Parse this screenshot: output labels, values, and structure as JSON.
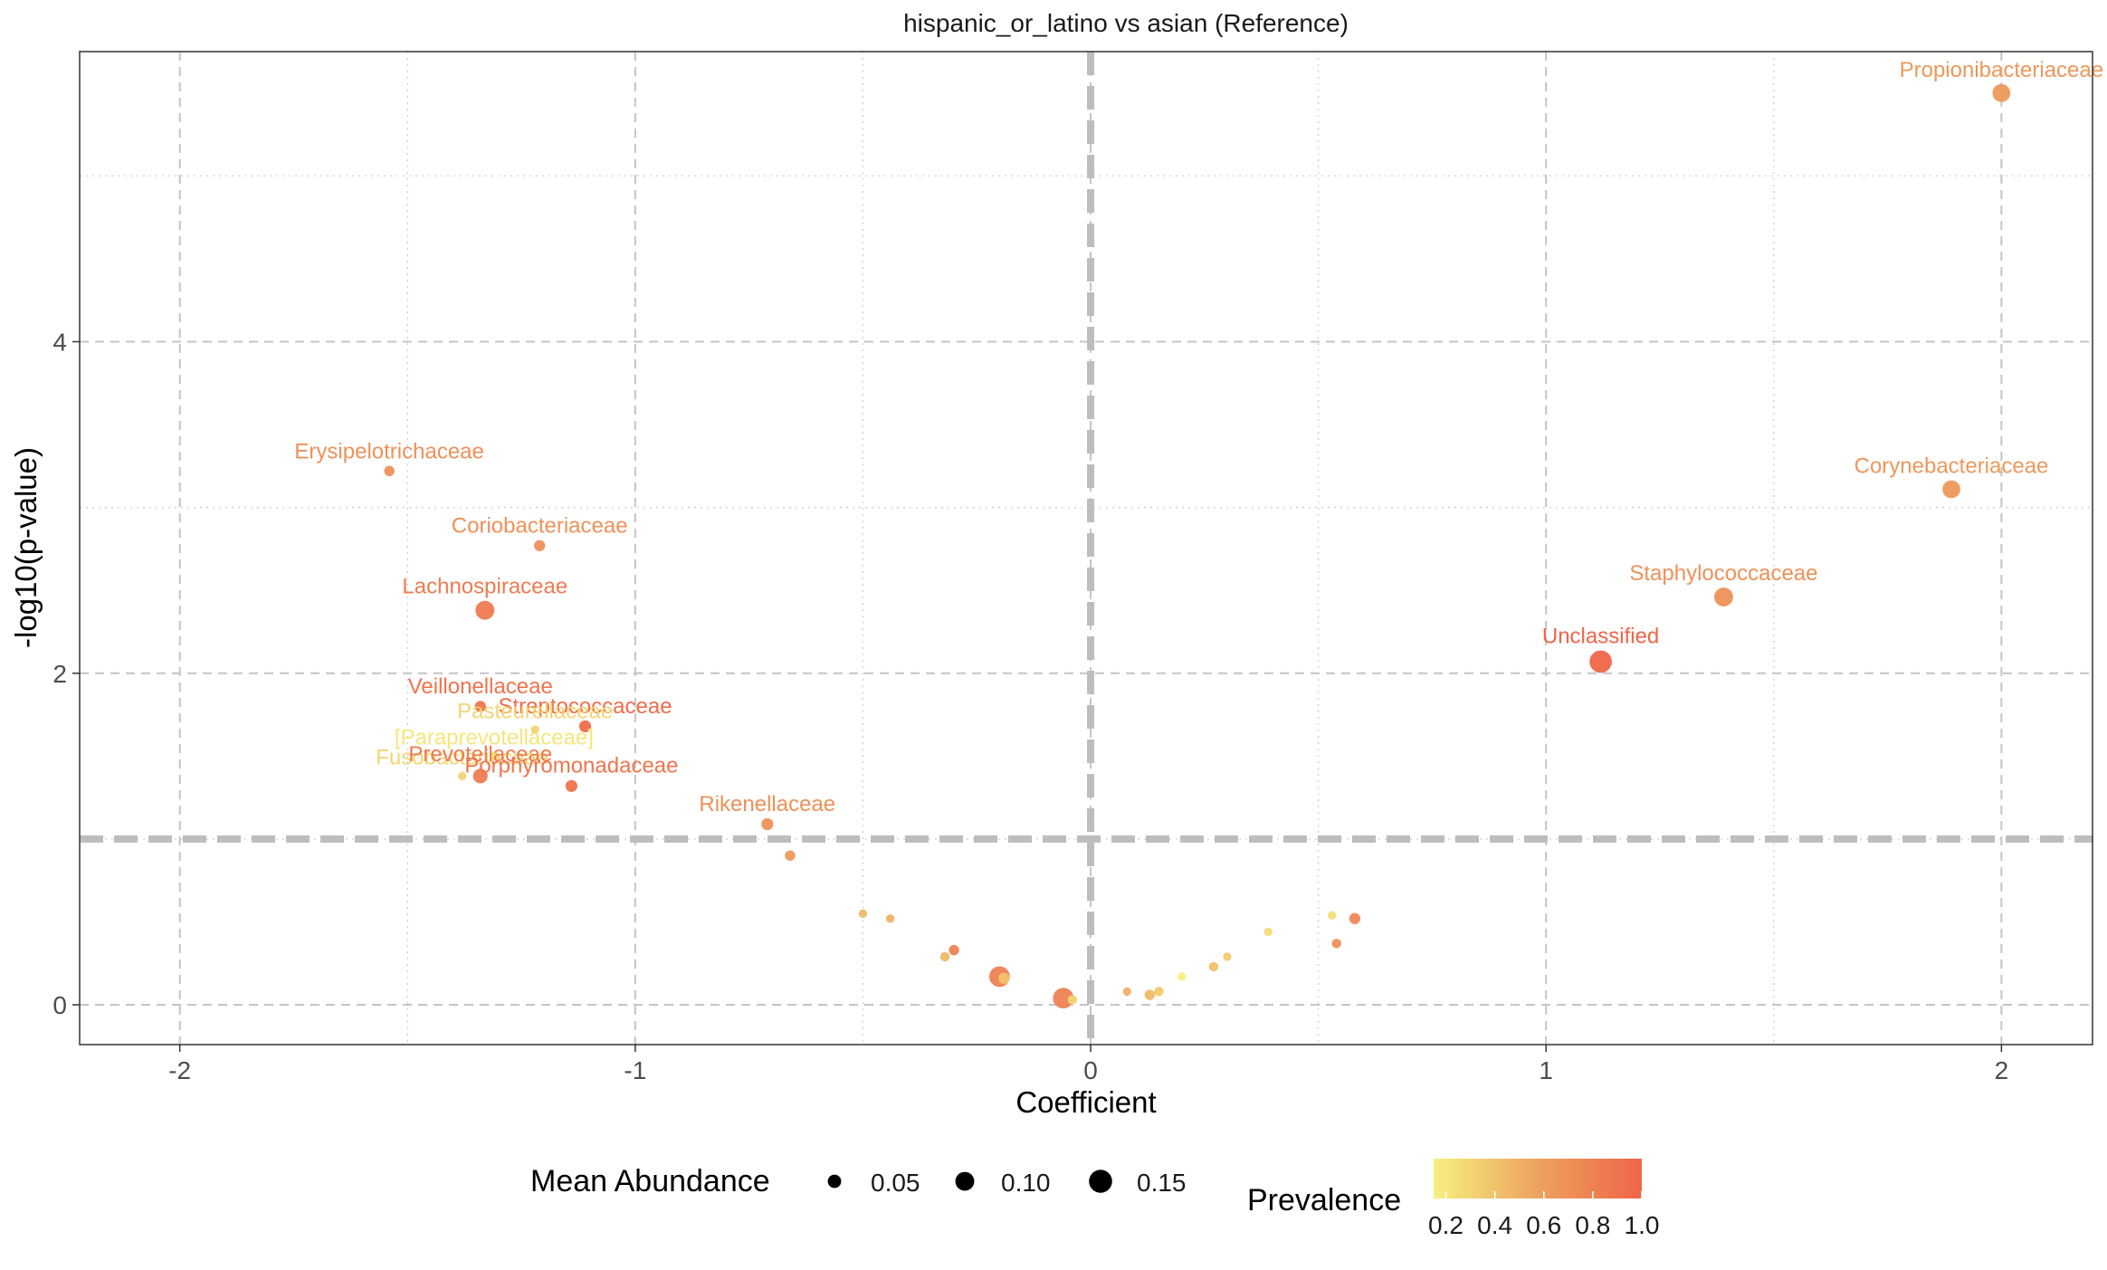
{
  "chart_data": {
    "type": "scatter",
    "title": "hispanic_or_latino vs asian (Reference)",
    "xlabel": "Coefficient",
    "ylabel": "-log10(p-value)",
    "xlim": [
      -2.22,
      2.2
    ],
    "ylim": [
      -0.24,
      5.75
    ],
    "x_ticks": [
      -2,
      -1,
      0,
      1,
      2
    ],
    "x_tick_labels": [
      "-2",
      "-1",
      "0",
      "1",
      "2"
    ],
    "y_ticks": [
      0,
      2,
      4
    ],
    "y_tick_labels": [
      "0",
      "2",
      "4"
    ],
    "x_minor_grid": [
      -1.5,
      -0.5,
      0.5,
      1.5
    ],
    "y_minor_grid": [
      1,
      3,
      5
    ],
    "grid": true,
    "reference_lines": {
      "x": 0,
      "y": 1
    },
    "color_scale": {
      "low": "#f7ef7f",
      "mid": "#eda35f",
      "high": "#ef6548"
    },
    "legends": {
      "size": {
        "title": "Mean Abundance",
        "breaks": [
          0.05,
          0.1,
          0.15
        ],
        "labels": [
          "0.05",
          "0.10",
          "0.15"
        ]
      },
      "color": {
        "title": "Prevalence",
        "breaks": [
          0.2,
          0.4,
          0.6,
          0.8,
          1.0
        ],
        "labels": [
          "0.2",
          "0.4",
          "0.6",
          "0.8",
          "1.0"
        ]
      },
      "placement": "bottom"
    },
    "points": [
      {
        "label": "Propionibacteriaceae",
        "x": 2.0,
        "y": 5.5,
        "abundance": 0.09,
        "prevalence": 0.65
      },
      {
        "label": "Corynebacteriaceae",
        "x": 1.89,
        "y": 3.11,
        "abundance": 0.09,
        "prevalence": 0.65
      },
      {
        "label": "Staphylococcaceae",
        "x": 1.39,
        "y": 2.46,
        "abundance": 0.1,
        "prevalence": 0.7
      },
      {
        "label": "Unclassified",
        "x": 1.12,
        "y": 2.07,
        "abundance": 0.14,
        "prevalence": 1.0
      },
      {
        "label": "Erysipelotrichaceae",
        "x": -1.54,
        "y": 3.22,
        "abundance": 0.03,
        "prevalence": 0.7
      },
      {
        "label": "Coriobacteriaceae",
        "x": -1.21,
        "y": 2.77,
        "abundance": 0.035,
        "prevalence": 0.7
      },
      {
        "label": "Lachnospiraceae",
        "x": -1.33,
        "y": 2.38,
        "abundance": 0.1,
        "prevalence": 0.85
      },
      {
        "label": "Veillonellaceae",
        "x": -1.34,
        "y": 1.8,
        "abundance": 0.035,
        "prevalence": 0.9
      },
      {
        "label": "Streptococcaceae",
        "x": -1.11,
        "y": 1.68,
        "abundance": 0.04,
        "prevalence": 0.95
      },
      {
        "label": "Pasteurellaceae",
        "x": -1.22,
        "y": 1.66,
        "abundance": 0.02,
        "prevalence": 0.3
      },
      {
        "label": "[Paraprevotellaceae]",
        "x": -1.31,
        "y": 1.5,
        "abundance": 0.02,
        "prevalence": 0.2
      },
      {
        "label": "Fusobacteriaceae",
        "x": -1.38,
        "y": 1.38,
        "abundance": 0.02,
        "prevalence": 0.3
      },
      {
        "label": "Prevotellaceae",
        "x": -1.34,
        "y": 1.38,
        "abundance": 0.06,
        "prevalence": 0.85
      },
      {
        "label": "Porphyromonadaceae",
        "x": -1.14,
        "y": 1.32,
        "abundance": 0.04,
        "prevalence": 0.9
      },
      {
        "label": "Rikenellaceae",
        "x": -0.71,
        "y": 1.09,
        "abundance": 0.04,
        "prevalence": 0.7
      },
      {
        "label": "",
        "x": -0.66,
        "y": 0.9,
        "abundance": 0.03,
        "prevalence": 0.65
      },
      {
        "label": "",
        "x": -0.5,
        "y": 0.55,
        "abundance": 0.02,
        "prevalence": 0.45
      },
      {
        "label": "",
        "x": -0.44,
        "y": 0.52,
        "abundance": 0.02,
        "prevalence": 0.5
      },
      {
        "label": "",
        "x": -0.32,
        "y": 0.29,
        "abundance": 0.025,
        "prevalence": 0.45
      },
      {
        "label": "",
        "x": -0.3,
        "y": 0.33,
        "abundance": 0.03,
        "prevalence": 0.8
      },
      {
        "label": "",
        "x": -0.2,
        "y": 0.17,
        "abundance": 0.12,
        "prevalence": 0.8
      },
      {
        "label": "",
        "x": -0.19,
        "y": 0.16,
        "abundance": 0.035,
        "prevalence": 0.4
      },
      {
        "label": "",
        "x": -0.06,
        "y": 0.04,
        "abundance": 0.12,
        "prevalence": 0.8
      },
      {
        "label": "",
        "x": -0.04,
        "y": 0.03,
        "abundance": 0.025,
        "prevalence": 0.3
      },
      {
        "label": "",
        "x": 0.08,
        "y": 0.08,
        "abundance": 0.02,
        "prevalence": 0.5
      },
      {
        "label": "",
        "x": 0.13,
        "y": 0.06,
        "abundance": 0.03,
        "prevalence": 0.45
      },
      {
        "label": "",
        "x": 0.15,
        "y": 0.08,
        "abundance": 0.025,
        "prevalence": 0.35
      },
      {
        "label": "",
        "x": 0.2,
        "y": 0.17,
        "abundance": 0.02,
        "prevalence": 0.15
      },
      {
        "label": "",
        "x": 0.27,
        "y": 0.23,
        "abundance": 0.025,
        "prevalence": 0.4
      },
      {
        "label": "",
        "x": 0.3,
        "y": 0.29,
        "abundance": 0.02,
        "prevalence": 0.35
      },
      {
        "label": "",
        "x": 0.39,
        "y": 0.44,
        "abundance": 0.02,
        "prevalence": 0.25
      },
      {
        "label": "",
        "x": 0.53,
        "y": 0.54,
        "abundance": 0.02,
        "prevalence": 0.25
      },
      {
        "label": "",
        "x": 0.54,
        "y": 0.37,
        "abundance": 0.025,
        "prevalence": 0.7
      },
      {
        "label": "",
        "x": 0.58,
        "y": 0.52,
        "abundance": 0.035,
        "prevalence": 0.75
      }
    ]
  }
}
